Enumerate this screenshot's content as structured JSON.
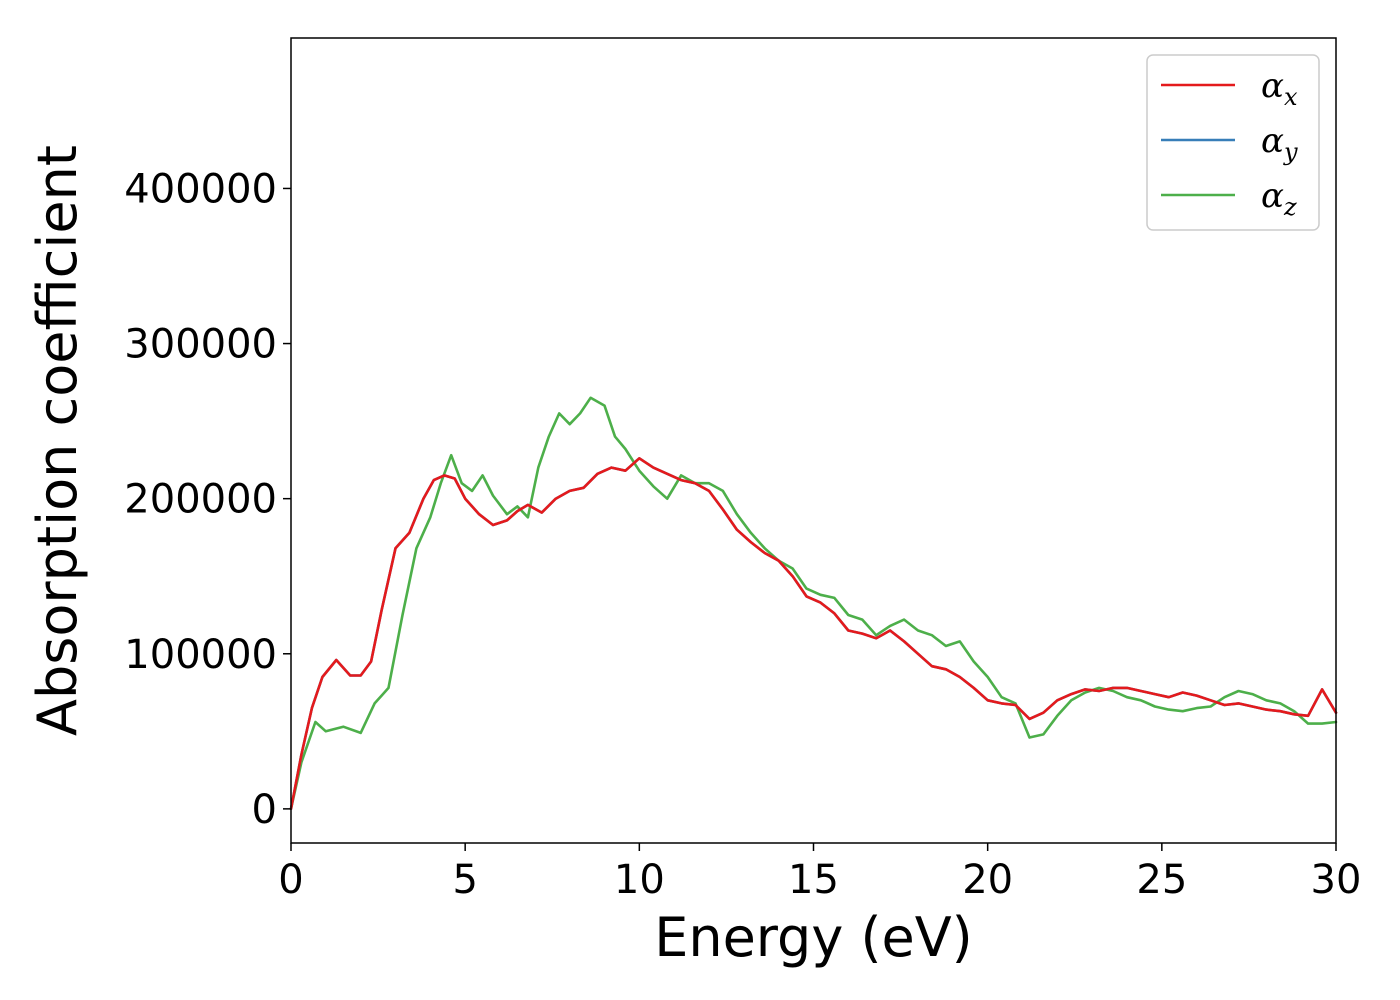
{
  "chart_data": {
    "type": "line",
    "xlabel": "Energy (eV)",
    "ylabel": "Absorption coefficient",
    "xlim": [
      0,
      30
    ],
    "ylim": [
      -22000,
      497000
    ],
    "xticks": [
      "0",
      "5",
      "10",
      "15",
      "20",
      "25",
      "30"
    ],
    "yticks": [
      "0",
      "100000",
      "200000",
      "300000",
      "400000"
    ],
    "grid": false,
    "legend_position": "top-right",
    "series": [
      {
        "name": "α_x",
        "symbol": "α",
        "sub": "x",
        "color": "#e41a1c",
        "x": [
          0,
          0.3,
          0.6,
          0.9,
          1.3,
          1.7,
          2.0,
          2.3,
          2.6,
          3.0,
          3.4,
          3.8,
          4.1,
          4.4,
          4.7,
          5.0,
          5.4,
          5.8,
          6.2,
          6.5,
          6.8,
          7.2,
          7.6,
          8.0,
          8.4,
          8.8,
          9.2,
          9.6,
          10.0,
          10.4,
          10.8,
          11.2,
          11.6,
          12.0,
          12.4,
          12.8,
          13.2,
          13.6,
          14.0,
          14.4,
          14.8,
          15.2,
          15.6,
          16.0,
          16.4,
          16.8,
          17.2,
          17.6,
          18.0,
          18.4,
          18.8,
          19.2,
          19.6,
          20.0,
          20.4,
          20.8,
          21.2,
          21.6,
          22.0,
          22.4,
          22.8,
          23.2,
          23.6,
          24.0,
          24.4,
          24.8,
          25.2,
          25.6,
          26.0,
          26.4,
          26.8,
          27.2,
          27.6,
          28.0,
          28.4,
          28.8,
          29.2,
          29.6,
          30.0
        ],
        "y": [
          0,
          35000,
          65000,
          85000,
          96000,
          86000,
          86000,
          95000,
          128000,
          168000,
          178000,
          200000,
          212000,
          215000,
          213000,
          200000,
          190000,
          183000,
          186000,
          192000,
          196000,
          191000,
          200000,
          205000,
          207000,
          216000,
          220000,
          218000,
          226000,
          220000,
          216000,
          212000,
          210000,
          205000,
          193000,
          180000,
          172000,
          165000,
          160000,
          150000,
          137000,
          133000,
          126000,
          115000,
          113000,
          110000,
          115000,
          108000,
          100000,
          92000,
          90000,
          85000,
          78000,
          70000,
          68000,
          67000,
          58000,
          62000,
          70000,
          74000,
          77000,
          76000,
          78000,
          78000,
          76000,
          74000,
          72000,
          75000,
          73000,
          70000,
          67000,
          68000,
          66000,
          64000,
          63000,
          61000,
          60000,
          77000,
          62000
        ]
      },
      {
        "name": "α_y",
        "symbol": "α",
        "sub": "y",
        "color": "#377eb8",
        "x": [
          0,
          0.3,
          0.6,
          0.9,
          1.3,
          1.7,
          2.0,
          2.3,
          2.6,
          3.0,
          3.4,
          3.8,
          4.1,
          4.4,
          4.7,
          5.0,
          5.4,
          5.8,
          6.2,
          6.5,
          6.8,
          7.2,
          7.6,
          8.0,
          8.4,
          8.8,
          9.2,
          9.6,
          10.0,
          10.4,
          10.8,
          11.2,
          11.6,
          12.0,
          12.4,
          12.8,
          13.2,
          13.6,
          14.0,
          14.4,
          14.8,
          15.2,
          15.6,
          16.0,
          16.4,
          16.8,
          17.2,
          17.6,
          18.0,
          18.4,
          18.8,
          19.2,
          19.6,
          20.0,
          20.4,
          20.8,
          21.2,
          21.6,
          22.0,
          22.4,
          22.8,
          23.2,
          23.6,
          24.0,
          24.4,
          24.8,
          25.2,
          25.6,
          26.0,
          26.4,
          26.8,
          27.2,
          27.6,
          28.0,
          28.4,
          28.8,
          29.2,
          29.6,
          30.0
        ],
        "y": [
          0,
          35000,
          65000,
          85000,
          96000,
          86000,
          86000,
          95000,
          128000,
          168000,
          178000,
          200000,
          212000,
          215000,
          213000,
          200000,
          190000,
          183000,
          186000,
          192000,
          196000,
          191000,
          200000,
          205000,
          207000,
          216000,
          220000,
          218000,
          226000,
          220000,
          216000,
          212000,
          210000,
          205000,
          193000,
          180000,
          172000,
          165000,
          160000,
          150000,
          137000,
          133000,
          126000,
          115000,
          113000,
          110000,
          115000,
          108000,
          100000,
          92000,
          90000,
          85000,
          78000,
          70000,
          68000,
          67000,
          58000,
          62000,
          70000,
          74000,
          77000,
          76000,
          78000,
          78000,
          76000,
          74000,
          72000,
          75000,
          73000,
          70000,
          67000,
          68000,
          66000,
          64000,
          63000,
          61000,
          60000,
          77000,
          62000
        ]
      },
      {
        "name": "α_z",
        "symbol": "α",
        "sub": "z",
        "color": "#4daf4a",
        "x": [
          0,
          0.3,
          0.7,
          1.0,
          1.5,
          2.0,
          2.4,
          2.8,
          3.2,
          3.6,
          4.0,
          4.3,
          4.6,
          4.9,
          5.2,
          5.5,
          5.8,
          6.2,
          6.5,
          6.8,
          7.1,
          7.4,
          7.7,
          8.0,
          8.3,
          8.6,
          9.0,
          9.3,
          9.6,
          10.0,
          10.4,
          10.8,
          11.2,
          11.6,
          12.0,
          12.4,
          12.8,
          13.2,
          13.6,
          14.0,
          14.4,
          14.8,
          15.2,
          15.6,
          16.0,
          16.4,
          16.8,
          17.2,
          17.6,
          18.0,
          18.4,
          18.8,
          19.2,
          19.6,
          20.0,
          20.4,
          20.8,
          21.2,
          21.6,
          22.0,
          22.4,
          22.8,
          23.2,
          23.6,
          24.0,
          24.4,
          24.8,
          25.2,
          25.6,
          26.0,
          26.4,
          26.8,
          27.2,
          27.6,
          28.0,
          28.4,
          28.8,
          29.2,
          29.6,
          30.0
        ],
        "y": [
          0,
          30000,
          56000,
          50000,
          53000,
          49000,
          68000,
          78000,
          125000,
          168000,
          188000,
          210000,
          228000,
          210000,
          205000,
          215000,
          202000,
          190000,
          195000,
          188000,
          220000,
          240000,
          255000,
          248000,
          255000,
          265000,
          260000,
          240000,
          232000,
          218000,
          208000,
          200000,
          215000,
          210000,
          210000,
          205000,
          190000,
          178000,
          168000,
          160000,
          155000,
          142000,
          138000,
          136000,
          125000,
          122000,
          112000,
          118000,
          122000,
          115000,
          112000,
          105000,
          108000,
          95000,
          85000,
          72000,
          68000,
          46000,
          48000,
          60000,
          70000,
          75000,
          78000,
          76000,
          72000,
          70000,
          66000,
          64000,
          63000,
          65000,
          66000,
          72000,
          76000,
          74000,
          70000,
          68000,
          63000,
          55000,
          55000,
          56000
        ]
      }
    ]
  }
}
